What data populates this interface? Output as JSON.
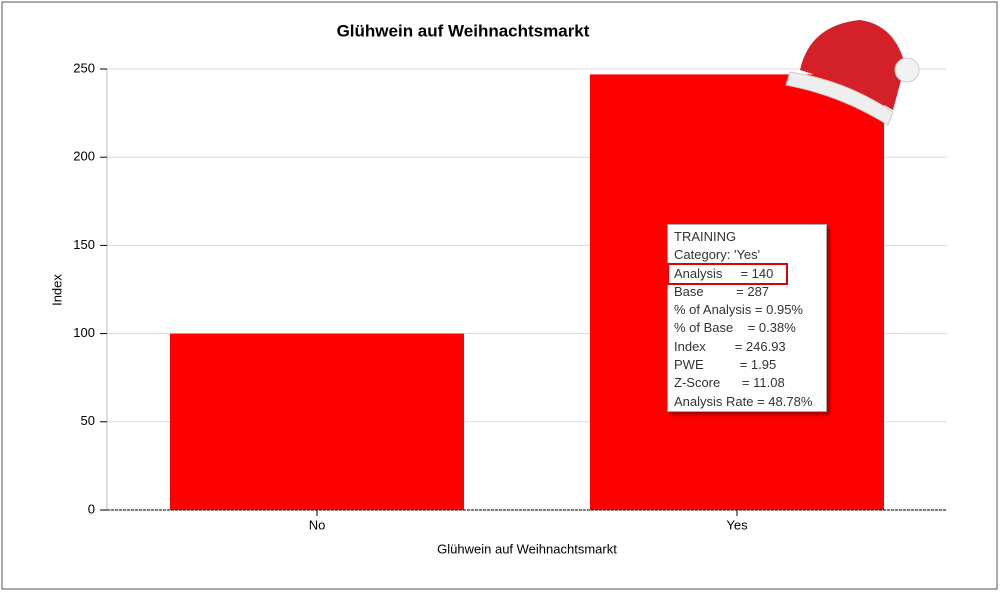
{
  "chart_data": {
    "type": "bar",
    "title": "Glühwein auf Weihnachtsmarkt",
    "x_label": "Glühwein auf Weihnachtsmarkt",
    "y_label": "Index",
    "categories": [
      "No",
      "Yes"
    ],
    "values": [
      100,
      246.93
    ],
    "color": "#ff0000",
    "ylim": [
      0,
      250
    ],
    "yticks": [
      0,
      50,
      100,
      150,
      200,
      250
    ],
    "grid": true
  },
  "tooltip": {
    "lines": [
      "TRAINING",
      "Category: 'Yes'",
      "Analysis     = 140",
      "Base         = 287",
      "% of Analysis = 0.95%",
      "% of Base    = 0.38%",
      "Index        = 246.93",
      "PWE          = 1.95",
      "Z-Score      = 11.08",
      "Analysis Rate = 48.78%"
    ],
    "highlighted": 2
  }
}
